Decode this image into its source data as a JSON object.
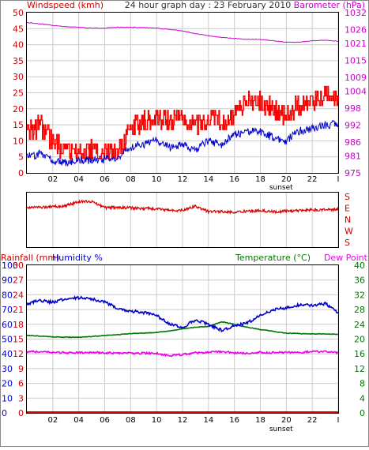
{
  "header": {
    "windspeed_label": "Windspeed (kmh)",
    "title": "24 hour graph day : 23 February 2010",
    "barometer_label": "Barometer (hPa)"
  },
  "lower_header": {
    "rainfall_label": "Rainfall (mm)",
    "humidity_label": "Humidity %",
    "temperature_label": "Temperature (°C)",
    "dewpoint_label": "Dew Point"
  },
  "colors": {
    "wind_max": "#ff0000",
    "wind_avg": "#0000cc",
    "barometer": "#cc00cc",
    "direction": "#dd0000",
    "rainfall": "#dd0000",
    "humidity": "#0000cc",
    "temperature": "#007700",
    "dewpoint": "#ee00ee",
    "grid": "#cccccc"
  },
  "chart_data": [
    {
      "type": "line",
      "panel": "wind-barometer",
      "x_tick_labels": [
        "02",
        "04",
        "06",
        "08",
        "10",
        "12",
        "14",
        "16",
        "18",
        "20",
        "22",
        "I"
      ],
      "x_annotation": "sunset",
      "left_axis": {
        "label": "Windspeed (kmh)",
        "ticks": [
          0,
          5,
          10,
          15,
          20,
          25,
          30,
          35,
          40,
          45,
          50
        ],
        "ylim": [
          0,
          50
        ]
      },
      "right_axis": {
        "label": "Barometer (hPa)",
        "ticks": [
          975,
          981,
          986,
          992,
          998,
          1004,
          1009,
          1015,
          1021,
          1026,
          1032
        ],
        "ylim": [
          975,
          1032
        ]
      },
      "x": [
        0,
        1,
        2,
        3,
        4,
        5,
        6,
        7,
        8,
        9,
        10,
        11,
        12,
        13,
        14,
        15,
        16,
        17,
        18,
        19,
        20,
        21,
        22,
        23,
        24
      ],
      "series": [
        {
          "name": "wind max",
          "axis": "left",
          "values": [
            12,
            15,
            10,
            7,
            6,
            7,
            6,
            6,
            15,
            16,
            17,
            16,
            17,
            15,
            17,
            16,
            18,
            23,
            22,
            20,
            18,
            21,
            22,
            25,
            22
          ]
        },
        {
          "name": "wind avg",
          "axis": "left",
          "values": [
            5,
            6,
            4,
            3,
            4,
            4,
            4,
            5,
            8,
            9,
            10,
            8,
            9,
            7,
            10,
            9,
            12,
            13,
            13,
            11,
            10,
            13,
            14,
            15,
            15
          ]
        },
        {
          "name": "barometer",
          "axis": "right",
          "values": [
            1028.5,
            1028,
            1027.5,
            1027,
            1026.8,
            1026.5,
            1026.5,
            1026.8,
            1026.8,
            1026.7,
            1026.5,
            1026,
            1025.5,
            1024.5,
            1023.8,
            1023.2,
            1022.8,
            1022.5,
            1022.5,
            1022,
            1021.5,
            1021.5,
            1022,
            1022.2,
            1021.8
          ]
        }
      ]
    },
    {
      "type": "line",
      "panel": "wind-direction",
      "axis_labels": [
        "S",
        "E",
        "N",
        "W",
        "S"
      ],
      "x": [
        0,
        1,
        2,
        3,
        4,
        5,
        6,
        7,
        8,
        9,
        10,
        11,
        12,
        13,
        14,
        15,
        16,
        17,
        18,
        19,
        20,
        21,
        22,
        23,
        24
      ],
      "series": [
        {
          "name": "direction",
          "values": [
            0.28,
            0.27,
            0.26,
            0.24,
            0.17,
            0.16,
            0.28,
            0.27,
            0.28,
            0.29,
            0.3,
            0.33,
            0.32,
            0.25,
            0.35,
            0.35,
            0.36,
            0.34,
            0.33,
            0.35,
            0.34,
            0.33,
            0.32,
            0.31,
            0.31
          ]
        }
      ]
    },
    {
      "type": "line",
      "panel": "temperature-humidity",
      "x_tick_labels": [
        "02",
        "04",
        "06",
        "08",
        "10",
        "12",
        "14",
        "16",
        "18",
        "20",
        "22",
        "I"
      ],
      "x_annotation": "sunset",
      "left_axes": [
        {
          "label": "Rainfall (mm)",
          "ticks": [
            0,
            3,
            6,
            9,
            12,
            15,
            18,
            21,
            24,
            27,
            30
          ],
          "ylim": [
            0,
            30
          ]
        },
        {
          "label": "Humidity %",
          "ticks": [
            0,
            10,
            20,
            30,
            40,
            50,
            60,
            70,
            80,
            90,
            100
          ],
          "ylim": [
            0,
            100
          ]
        }
      ],
      "right_axis": {
        "label": "Temperature (°C)",
        "ticks": [
          0,
          4,
          8,
          12,
          16,
          20,
          24,
          28,
          32,
          36,
          40
        ],
        "ylim": [
          0,
          40
        ]
      },
      "x": [
        0,
        1,
        2,
        3,
        4,
        5,
        6,
        7,
        8,
        9,
        10,
        11,
        12,
        13,
        14,
        15,
        16,
        17,
        18,
        19,
        20,
        21,
        22,
        23,
        24
      ],
      "series": [
        {
          "name": "humidity",
          "axis": "humidity",
          "values": [
            74,
            76,
            75,
            77,
            78,
            77,
            75,
            71,
            69,
            68,
            66,
            60,
            58,
            63,
            60,
            56,
            59,
            61,
            66,
            70,
            71,
            73,
            73,
            74,
            68
          ]
        },
        {
          "name": "temperature",
          "axis": "right",
          "values": [
            21,
            20.8,
            20.6,
            20.5,
            20.5,
            20.7,
            21,
            21.2,
            21.5,
            21.6,
            21.8,
            22.2,
            22.8,
            23.2,
            23.4,
            24.7,
            24,
            23.2,
            22.6,
            22.1,
            21.6,
            21.5,
            21.4,
            21.4,
            21.3
          ]
        },
        {
          "name": "dew point",
          "axis": "right",
          "values": [
            16.6,
            16.5,
            16.4,
            16.3,
            16.3,
            16.4,
            16.3,
            16.2,
            16.2,
            16.2,
            16.1,
            15.5,
            15.8,
            16.3,
            16.4,
            16.6,
            16.2,
            16.2,
            16.4,
            16.3,
            16.4,
            16.3,
            16.6,
            16.6,
            16.3
          ]
        },
        {
          "name": "rainfall",
          "axis": "rainfall",
          "values": [
            0,
            0,
            0,
            0,
            0,
            0,
            0,
            0,
            0,
            0,
            0,
            0,
            0,
            0,
            0,
            0,
            0,
            0,
            0,
            0,
            0,
            0,
            0,
            0,
            0
          ]
        }
      ]
    }
  ]
}
